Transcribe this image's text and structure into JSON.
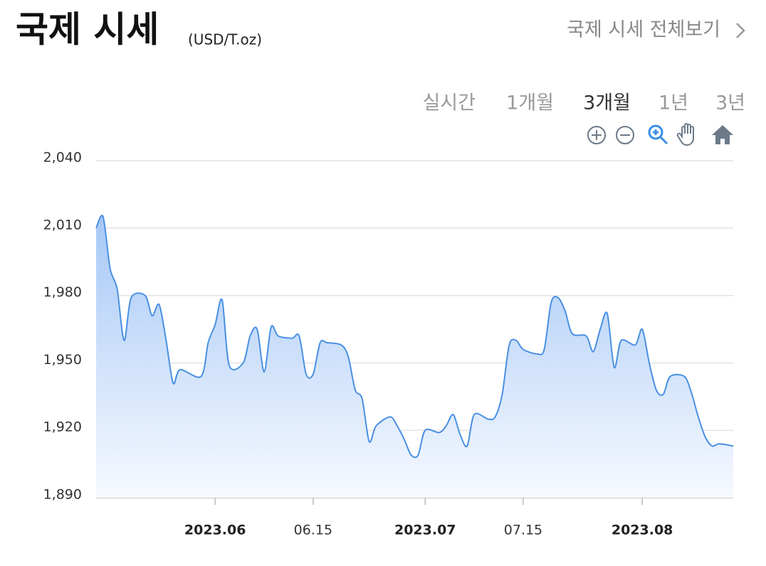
{
  "header": {
    "title": "국제 시세",
    "unit": "(USD/T.oz)",
    "link": "국제 시세 전체보기"
  },
  "tabs": {
    "items": [
      "실시간",
      "1개월",
      "3개월",
      "1년",
      "3년"
    ],
    "selected": 2
  },
  "chart_data": {
    "type": "area",
    "color": "#4a90e2",
    "grid": true,
    "x": [
      "2023-05-15",
      "2023-05-16",
      "2023-05-17",
      "2023-05-18",
      "2023-05-19",
      "2023-05-20",
      "2023-05-22",
      "2023-05-23",
      "2023-05-24",
      "2023-05-25",
      "2023-05-26",
      "2023-05-27",
      "2023-05-30",
      "2023-05-31",
      "2023-06-01",
      "2023-06-02",
      "2023-06-03",
      "2023-06-05",
      "2023-06-06",
      "2023-06-07",
      "2023-06-08",
      "2023-06-09",
      "2023-06-10",
      "2023-06-12",
      "2023-06-13",
      "2023-06-14",
      "2023-06-15",
      "2023-06-16",
      "2023-06-17",
      "2023-06-19",
      "2023-06-20",
      "2023-06-21",
      "2023-06-22",
      "2023-06-23",
      "2023-06-24",
      "2023-06-26",
      "2023-06-27",
      "2023-06-28",
      "2023-06-29",
      "2023-06-30",
      "2023-07-01",
      "2023-07-03",
      "2023-07-04",
      "2023-07-05",
      "2023-07-06",
      "2023-07-07",
      "2023-07-08",
      "2023-07-10",
      "2023-07-11",
      "2023-07-12",
      "2023-07-13",
      "2023-07-14",
      "2023-07-15",
      "2023-07-17",
      "2023-07-18",
      "2023-07-19",
      "2023-07-20",
      "2023-07-21",
      "2023-07-22",
      "2023-07-24",
      "2023-07-25",
      "2023-07-26",
      "2023-07-27",
      "2023-07-28",
      "2023-07-29",
      "2023-07-31",
      "2023-08-01",
      "2023-08-02",
      "2023-08-03",
      "2023-08-04",
      "2023-08-05",
      "2023-08-07",
      "2023-08-08",
      "2023-08-09",
      "2023-08-10",
      "2023-08-11",
      "2023-08-12",
      "2023-08-14"
    ],
    "values": [
      2010,
      2015,
      1992,
      1983,
      1960,
      1979,
      1980,
      1971,
      1976,
      1960,
      1941,
      1947,
      1944,
      1959,
      1967,
      1978,
      1949,
      1950,
      1962,
      1965,
      1946,
      1966,
      1962,
      1961,
      1962,
      1945,
      1945,
      1959,
      1959,
      1958,
      1953,
      1938,
      1934,
      1915,
      1922,
      1926,
      1922,
      1916,
      1909,
      1909,
      1920,
      1919,
      1922,
      1927,
      1918,
      1913,
      1927,
      1925,
      1926,
      1936,
      1958,
      1960,
      1956,
      1954,
      1956,
      1977,
      1979,
      1973,
      1963,
      1962,
      1955,
      1965,
      1972,
      1948,
      1960,
      1958,
      1965,
      1950,
      1938,
      1936,
      1944,
      1944,
      1937,
      1926,
      1917,
      1913,
      1914,
      1913
    ],
    "xlim": [
      "2023-05-15",
      "2023-08-14"
    ],
    "xticks": [
      {
        "value": "2023-06-01",
        "label": "2023.06",
        "bold": true
      },
      {
        "value": "2023-06-15",
        "label": "06.15"
      },
      {
        "value": "2023-07-01",
        "label": "2023.07",
        "bold": true
      },
      {
        "value": "2023-07-15",
        "label": "07.15"
      },
      {
        "value": "2023-08-01",
        "label": "2023.08",
        "bold": true
      }
    ],
    "ylim": [
      1890,
      2040
    ],
    "yticks": [
      {
        "value": 1890,
        "label": "1,890"
      },
      {
        "value": 1920,
        "label": "1,920"
      },
      {
        "value": 1950,
        "label": "1,950"
      },
      {
        "value": 1980,
        "label": "1,980"
      },
      {
        "value": 2010,
        "label": "2,010"
      },
      {
        "value": 2040,
        "label": "2,040"
      }
    ]
  }
}
